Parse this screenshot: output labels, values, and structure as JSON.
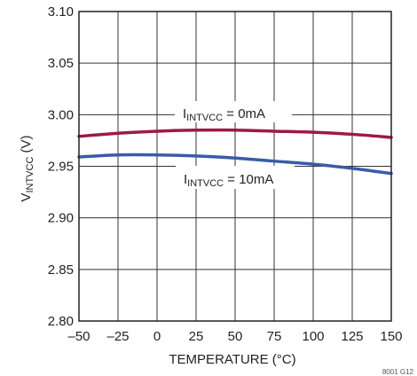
{
  "chart_data": {
    "type": "line",
    "title": "",
    "xlabel": "TEMPERATURE (°C)",
    "ylabel": {
      "main": "V",
      "sub": "INTVCC",
      "unit": " (V)"
    },
    "xlim": [
      -50,
      150
    ],
    "ylim": [
      2.8,
      3.1
    ],
    "x_ticks": [
      -50,
      -25,
      0,
      25,
      50,
      75,
      100,
      125,
      150
    ],
    "x_tick_labels": [
      "–50",
      "–25",
      "0",
      "25",
      "50",
      "75",
      "100",
      "125",
      "150"
    ],
    "y_ticks": [
      2.8,
      2.85,
      2.9,
      2.95,
      3.0,
      3.05,
      3.1
    ],
    "y_tick_labels": [
      "2.80",
      "2.85",
      "2.90",
      "2.95",
      "3.00",
      "3.05",
      "3.10"
    ],
    "grid": true,
    "series": [
      {
        "name": {
          "main": "I",
          "sub": "INTVCC",
          "rest": " = 0mA"
        },
        "color": "#9b1b45",
        "x": [
          -50,
          -25,
          0,
          25,
          50,
          75,
          100,
          125,
          150
        ],
        "y": [
          2.979,
          2.982,
          2.984,
          2.985,
          2.985,
          2.984,
          2.983,
          2.981,
          2.978
        ]
      },
      {
        "name": {
          "main": "I",
          "sub": "INTVCC",
          "rest": " = 10mA"
        },
        "color": "#3a5ba8",
        "x": [
          -50,
          -25,
          0,
          25,
          50,
          75,
          100,
          125,
          150
        ],
        "y": [
          2.959,
          2.961,
          2.961,
          2.96,
          2.958,
          2.955,
          2.952,
          2.948,
          2.943
        ]
      }
    ],
    "figure_ref": "8001 G12"
  }
}
